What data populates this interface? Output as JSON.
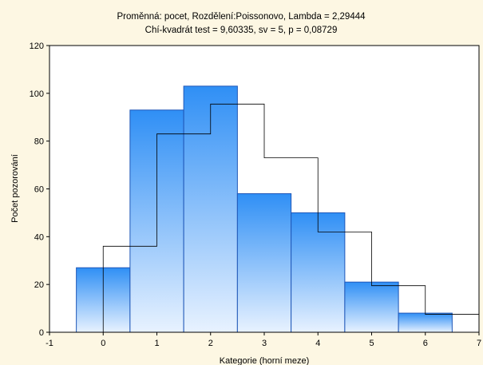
{
  "chart_data": {
    "type": "bar",
    "title": "Proměnná: pocet, Rozdělení:Poissonovo, Lambda = 2,29444",
    "subtitle": "Chí-kvadrát test = 9,60335, sv = 5, p = 0,08729",
    "xlabel": "Kategorie (horní meze)",
    "ylabel": "Počet pozorování",
    "xlim": [
      -1,
      7
    ],
    "ylim": [
      0,
      120
    ],
    "xticks": [
      "-1",
      "0",
      "1",
      "2",
      "3",
      "4",
      "5",
      "6",
      "7"
    ],
    "yticks": [
      "0",
      "20",
      "40",
      "60",
      "80",
      "100",
      "120"
    ],
    "grid": false,
    "categories": [
      0,
      1,
      2,
      3,
      4,
      5,
      6
    ],
    "series": [
      {
        "type": "bar",
        "values": [
          27,
          93,
          103,
          58,
          50,
          21,
          8
        ]
      },
      {
        "type": "step",
        "x": [
          -0.5,
          0,
          0,
          1,
          2,
          3,
          4,
          5,
          6,
          7
        ],
        "values": [
          0,
          0,
          36,
          83,
          95.5,
          73,
          42,
          19.5,
          7.5,
          2.5
        ]
      }
    ],
    "colors": {
      "background": "#fdf7e3",
      "plot_background": "#ffffff",
      "bar_top": "#2f8ff5",
      "bar_bottom": "#e8f2ff",
      "bar_edge": "#1f57b8",
      "expected_line": "#000000"
    }
  }
}
